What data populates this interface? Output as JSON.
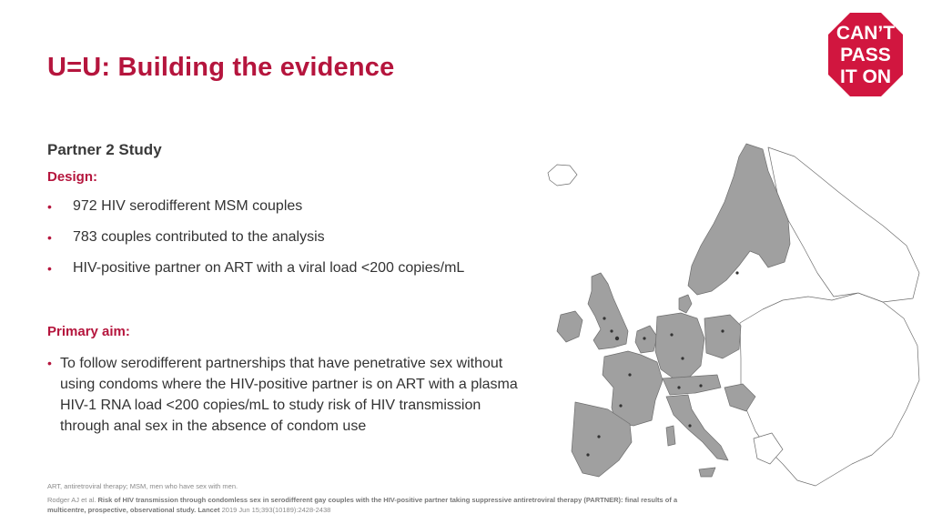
{
  "slide": {
    "title": "U=U: Building the evidence",
    "subtitle": "Partner 2 Study",
    "design_label": "Design:",
    "design_bullets": [
      "972 HIV serodifferent MSM couples",
      "783 couples contributed to the analysis",
      "HIV-positive partner on ART with a viral load <200 copies/mL"
    ],
    "aim_label": "Primary aim:",
    "aim_text": "To follow serodifferent partnerships that have penetrative sex without using condoms where the HIV-positive partner is on ART with a plasma HIV-1 RNA load <200 copies/mL to study risk of HIV transmission through anal sex in the absence of condom use"
  },
  "logo": {
    "lines": [
      "CAN’T",
      "PASS",
      "IT ON"
    ],
    "color": "#d1163f"
  },
  "footer": {
    "abbreviations": "ART, antiretroviral therapy; MSM, men who have sex with men.",
    "ref_authors": "Rodger AJ et al.",
    "ref_title": "Risk of HIV transmission through condomless sex in serodifferent gay couples with the HIV-positive partner taking suppressive antiretroviral therapy (PARTNER): final results of a multicentre, prospective, observational study.",
    "ref_journal": "Lancet",
    "ref_details": "2019 Jun 15;393(10189):2428-2438"
  },
  "colors": {
    "accent": "#b5153d",
    "map_highlight": "#a0a0a0",
    "map_other": "#ffffff"
  }
}
